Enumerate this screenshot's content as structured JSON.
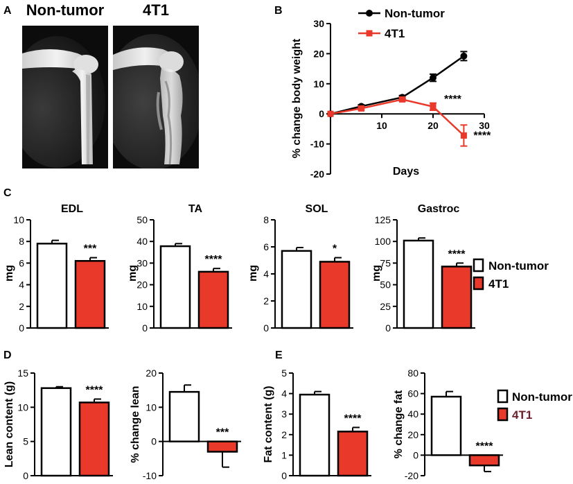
{
  "panel_letters": {
    "a": "A",
    "b": "B",
    "c": "C",
    "d": "D",
    "e": "E"
  },
  "panel_a": {
    "left_label": "Non-tumor",
    "right_label": "4T1"
  },
  "colors": {
    "nontumor": "#000000",
    "tumor": "#e8392a",
    "bar_nontumor": "#ffffff",
    "axis": "#000000"
  },
  "legend": {
    "nontumor": "Non-tumor",
    "tumor": "4T1",
    "tumor_text_color": "#6a1f2a"
  },
  "chart_data": [
    {
      "id": "B",
      "type": "line",
      "title": "",
      "xlabel": "Days",
      "ylabel": "% change body weight",
      "xlim": [
        0,
        30
      ],
      "ylim": [
        -20,
        30
      ],
      "xticks": [
        "10",
        "20",
        "30"
      ],
      "yticks": [
        "-20",
        "-10",
        "0",
        "10",
        "20",
        "30"
      ],
      "legend": "top-right",
      "series": [
        {
          "name": "Non-tumor",
          "x": [
            0,
            6,
            14,
            20,
            26
          ],
          "y": [
            0,
            2.5,
            5.5,
            12,
            19.2
          ],
          "err": [
            0,
            0.5,
            0.6,
            1.2,
            1.5
          ]
        },
        {
          "name": "4T1",
          "x": [
            0,
            6,
            14,
            20,
            26
          ],
          "y": [
            0,
            1.8,
            4.8,
            2.4,
            -7.2
          ],
          "err": [
            0,
            0.5,
            0.6,
            1.2,
            3.5
          ]
        }
      ],
      "annotations": [
        {
          "x": 20,
          "y": 2.4,
          "text": "****"
        },
        {
          "x": 26,
          "y": -7.2,
          "text": "****"
        }
      ]
    },
    {
      "id": "C-EDL",
      "type": "bar",
      "title": "EDL",
      "ylabel": "mg",
      "ylim": [
        0,
        10
      ],
      "yticks": [
        "0",
        "2",
        "4",
        "6",
        "8",
        "10"
      ],
      "categories": [
        "Non-tumor",
        "4T1"
      ],
      "values": [
        7.8,
        6.2
      ],
      "errors": [
        0.3,
        0.3
      ],
      "significance": "***"
    },
    {
      "id": "C-TA",
      "type": "bar",
      "title": "TA",
      "ylabel": "mg",
      "ylim": [
        0,
        50
      ],
      "yticks": [
        "0",
        "10",
        "20",
        "30",
        "40",
        "50"
      ],
      "categories": [
        "Non-tumor",
        "4T1"
      ],
      "values": [
        37.8,
        26
      ],
      "errors": [
        1.2,
        1.5
      ],
      "significance": "****"
    },
    {
      "id": "C-SOL",
      "type": "bar",
      "title": "SOL",
      "ylabel": "mg",
      "ylim": [
        0,
        8
      ],
      "yticks": [
        "0",
        "2",
        "4",
        "6",
        "8"
      ],
      "categories": [
        "Non-tumor",
        "4T1"
      ],
      "values": [
        5.7,
        4.9
      ],
      "errors": [
        0.25,
        0.3
      ],
      "significance": "*"
    },
    {
      "id": "C-Gastroc",
      "type": "bar",
      "title": "Gastroc",
      "ylabel": "mg",
      "ylim": [
        0,
        125
      ],
      "yticks": [
        "0",
        "25",
        "50",
        "75",
        "100",
        "125"
      ],
      "categories": [
        "Non-tumor",
        "4T1"
      ],
      "values": [
        101,
        71
      ],
      "errors": [
        3,
        4
      ],
      "significance": "****"
    },
    {
      "id": "D-lean",
      "type": "bar",
      "title": "",
      "ylabel": "Lean content (g)",
      "ylim": [
        0,
        15
      ],
      "yticks": [
        "0",
        "5",
        "10",
        "15"
      ],
      "categories": [
        "Non-tumor",
        "4T1"
      ],
      "values": [
        12.8,
        10.7
      ],
      "errors": [
        0.2,
        0.5
      ],
      "significance": "****"
    },
    {
      "id": "D-lean-change",
      "type": "bar",
      "title": "",
      "ylabel": "% change lean",
      "ylim": [
        -10,
        20
      ],
      "yticks": [
        "-10",
        "0",
        "10",
        "20"
      ],
      "categories": [
        "Non-tumor",
        "4T1"
      ],
      "values": [
        14.5,
        -3
      ],
      "errors": [
        2,
        4.5
      ],
      "significance": "***"
    },
    {
      "id": "E-fat",
      "type": "bar",
      "title": "",
      "ylabel": "Fat content (g)",
      "ylim": [
        0,
        5
      ],
      "yticks": [
        "0",
        "1",
        "2",
        "3",
        "4",
        "5"
      ],
      "categories": [
        "Non-tumor",
        "4T1"
      ],
      "values": [
        3.95,
        2.15
      ],
      "errors": [
        0.15,
        0.2
      ],
      "significance": "****"
    },
    {
      "id": "E-fat-change",
      "type": "bar",
      "title": "",
      "ylabel": "% change fat",
      "ylim": [
        -20,
        80
      ],
      "yticks": [
        "-20",
        "0",
        "20",
        "40",
        "60",
        "80"
      ],
      "categories": [
        "Non-tumor",
        "4T1"
      ],
      "values": [
        57,
        -10
      ],
      "errors": [
        5,
        6
      ],
      "significance": "****"
    }
  ]
}
